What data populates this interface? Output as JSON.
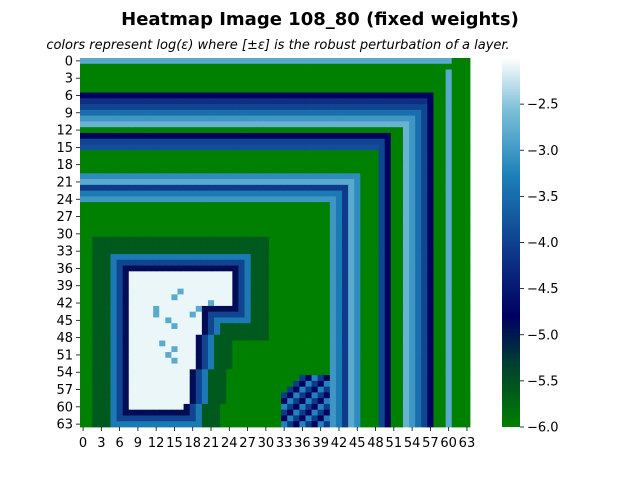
{
  "chart_data": {
    "type": "heatmap",
    "title": "Heatmap Image 108_80 (fixed weights)",
    "subtitle": "colors represent log(ε) where [±ε] is the robust perturbation of a layer.",
    "rows": 64,
    "cols": 64,
    "x_tick_labels": [
      "0",
      "3",
      "6",
      "9",
      "12",
      "15",
      "18",
      "21",
      "24",
      "27",
      "30",
      "33",
      "36",
      "39",
      "42",
      "45",
      "48",
      "51",
      "54",
      "57",
      "60",
      "63"
    ],
    "y_tick_labels": [
      "0",
      "3",
      "6",
      "9",
      "12",
      "15",
      "18",
      "21",
      "24",
      "27",
      "30",
      "33",
      "36",
      "39",
      "42",
      "45",
      "48",
      "51",
      "54",
      "57",
      "60",
      "63"
    ],
    "color_range": [
      -6.0,
      -2.0
    ],
    "colorbar_ticks": [
      "−2.5",
      "−3.0",
      "−3.5",
      "−4.0",
      "−4.5",
      "−5.0",
      "−5.5",
      "−6.0"
    ],
    "colorbar_tick_values": [
      -2.5,
      -3.0,
      -3.5,
      -4.0,
      -4.5,
      -5.0,
      -5.5,
      -6.0
    ],
    "colormap": [
      "#008000",
      "#003f30",
      "#000060",
      "#0e3a8a",
      "#1c80b8",
      "#7cc0d8",
      "#ffffff"
    ],
    "background_value": -6.0,
    "frame_levels": {
      "row_0": -6.0,
      "rows_1_2": -6.0,
      "rows_3_5": -6.0,
      "row_6": -4.7,
      "row_7": -4.1,
      "row_8": -3.9,
      "row_9": -3.5,
      "row_10": -3.1,
      "row_11": -2.8,
      "row_12": -6.0,
      "row_13": -4.7,
      "row_14": -3.9,
      "row_15": -3.8,
      "row_16": -6.0,
      "row_17": -6.0,
      "row_18": -6.0,
      "row_19": -6.0,
      "row_20": -3.2,
      "row_21": -2.9,
      "row_22": -4.0,
      "row_23": -3.4,
      "row_24": -3.1,
      "row_25": -6.0
    },
    "right_columns": {
      "col_45": -4.0,
      "col_46": -3.8,
      "col_47": -4.7,
      "col_48": -3.9,
      "col_49": -3.1,
      "col_50": -2.8,
      "col_51": -3.5,
      "col_52": -3.1,
      "col_53": -2.8,
      "col_54": -4.7,
      "col_55": -3.9,
      "col_56": -6.0,
      "col_57": -6.0,
      "col_58": -6.0,
      "col_59": -6.0,
      "col_60": -2.9,
      "col_61": -6.0,
      "col_62": -6.0,
      "col_63": -6.0
    },
    "digit_region": {
      "outer_ring": -3.4,
      "blue_ring": -3.9,
      "dark_ring": -4.8,
      "core": -2.1,
      "core_spots": -2.9
    }
  }
}
